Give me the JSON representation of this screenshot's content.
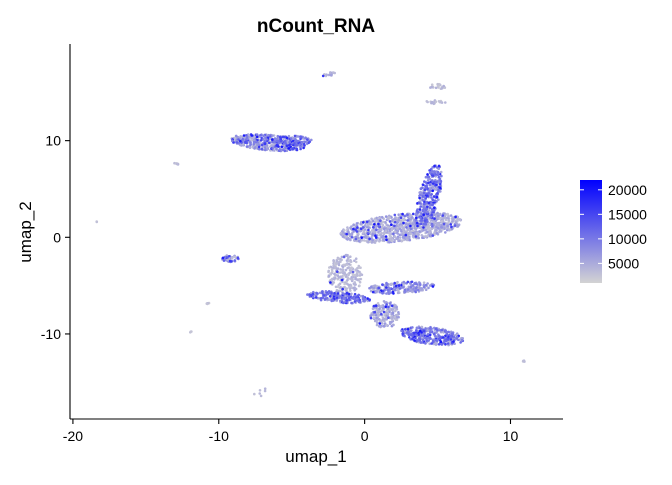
{
  "chart_data": {
    "type": "scatter",
    "title": "nCount_RNA",
    "xlabel": "umap_1",
    "ylabel": "umap_2",
    "xlim": [
      -20.2,
      13.6
    ],
    "ylim": [
      -18.8,
      20.0
    ],
    "x_ticks": [
      {
        "value": -20,
        "label": "-20"
      },
      {
        "value": -10,
        "label": "-10"
      },
      {
        "value": 0,
        "label": "0"
      },
      {
        "value": 10,
        "label": "10"
      }
    ],
    "y_ticks": [
      {
        "value": -10,
        "label": "-10"
      },
      {
        "value": 0,
        "label": "0"
      },
      {
        "value": 10,
        "label": "10"
      }
    ],
    "grid": false,
    "legend": {
      "placement": "right",
      "min": 1000,
      "max": 22000,
      "low_color": "#d3d3d3",
      "high_color": "#0000ff",
      "ticks": [
        {
          "value": 5000,
          "label": "5000"
        },
        {
          "value": 10000,
          "label": "10000"
        },
        {
          "value": 15000,
          "label": "15000"
        },
        {
          "value": 20000,
          "label": "20000"
        }
      ]
    },
    "clusters": [
      {
        "cx": -6.6,
        "cy": 9.8,
        "rx": 2.6,
        "ry": 0.8,
        "angle": -8,
        "n": 420,
        "base": 3000,
        "extra": 6500,
        "hot": 0.18
      },
      {
        "cx": -5.0,
        "cy": 10.0,
        "rx": 1.4,
        "ry": 0.5,
        "angle": 0,
        "n": 120,
        "base": 3500,
        "extra": 7000,
        "hot": 0.2
      },
      {
        "cx": 2.5,
        "cy": 1.0,
        "rx": 4.2,
        "ry": 1.4,
        "angle": 10,
        "n": 900,
        "base": 2500,
        "extra": 5000,
        "hot": 0.08
      },
      {
        "cx": 4.4,
        "cy": 4.2,
        "rx": 3.4,
        "ry": 0.7,
        "angle": 80,
        "n": 320,
        "base": 4000,
        "extra": 8000,
        "hot": 0.25
      },
      {
        "cx": -1.3,
        "cy": -3.8,
        "rx": 1.2,
        "ry": 2.0,
        "angle": 0,
        "n": 220,
        "base": 2000,
        "extra": 3000,
        "hot": 0.03
      },
      {
        "cx": -1.8,
        "cy": -6.2,
        "rx": 2.2,
        "ry": 0.55,
        "angle": -8,
        "n": 200,
        "base": 3500,
        "extra": 8500,
        "hot": 0.3
      },
      {
        "cx": 2.5,
        "cy": -5.2,
        "rx": 2.3,
        "ry": 0.6,
        "angle": 5,
        "n": 200,
        "base": 3000,
        "extra": 7000,
        "hot": 0.15
      },
      {
        "cx": 1.4,
        "cy": -8.0,
        "rx": 1.0,
        "ry": 1.4,
        "angle": 0,
        "n": 180,
        "base": 2500,
        "extra": 5000,
        "hot": 0.1
      },
      {
        "cx": 4.6,
        "cy": -10.2,
        "rx": 2.2,
        "ry": 0.9,
        "angle": -12,
        "n": 320,
        "base": 3500,
        "extra": 8500,
        "hot": 0.25
      },
      {
        "cx": -9.2,
        "cy": -2.2,
        "rx": 0.6,
        "ry": 0.35,
        "angle": 0,
        "n": 45,
        "base": 3000,
        "extra": 6000,
        "hot": 0.25
      },
      {
        "cx": 5.0,
        "cy": 15.6,
        "rx": 0.6,
        "ry": 0.25,
        "angle": 0,
        "n": 22,
        "base": 2000,
        "extra": 2500,
        "hot": 0.0
      },
      {
        "cx": 4.9,
        "cy": 14.0,
        "rx": 0.7,
        "ry": 0.2,
        "angle": 0,
        "n": 18,
        "base": 2000,
        "extra": 2500,
        "hot": 0.0
      },
      {
        "cx": -2.4,
        "cy": 16.9,
        "rx": 0.5,
        "ry": 0.2,
        "angle": 20,
        "n": 16,
        "base": 2000,
        "extra": 4500,
        "hot": 0.1
      },
      {
        "cx": -12.8,
        "cy": 7.6,
        "rx": 0.4,
        "ry": 0.12,
        "angle": 0,
        "n": 6,
        "base": 2000,
        "extra": 2000,
        "hot": 0.0
      },
      {
        "cx": -7.0,
        "cy": -16.0,
        "rx": 0.7,
        "ry": 0.35,
        "angle": 30,
        "n": 6,
        "base": 2000,
        "extra": 2000,
        "hot": 0.0
      },
      {
        "cx": -10.7,
        "cy": -6.9,
        "rx": 0.2,
        "ry": 0.1,
        "angle": 0,
        "n": 5,
        "base": 2000,
        "extra": 2000,
        "hot": 0.0
      },
      {
        "cx": 10.9,
        "cy": -12.8,
        "rx": 0.12,
        "ry": 0.08,
        "angle": 0,
        "n": 4,
        "base": 2000,
        "extra": 2000,
        "hot": 0.0
      },
      {
        "cx": -11.9,
        "cy": -9.8,
        "rx": 0.08,
        "ry": 0.08,
        "angle": 0,
        "n": 3,
        "base": 2000,
        "extra": 2000,
        "hot": 0.0
      },
      {
        "cx": -18.4,
        "cy": 1.6,
        "rx": 0.05,
        "ry": 0.05,
        "angle": 0,
        "n": 2,
        "base": 2000,
        "extra": 1000,
        "hot": 0.0
      }
    ]
  }
}
